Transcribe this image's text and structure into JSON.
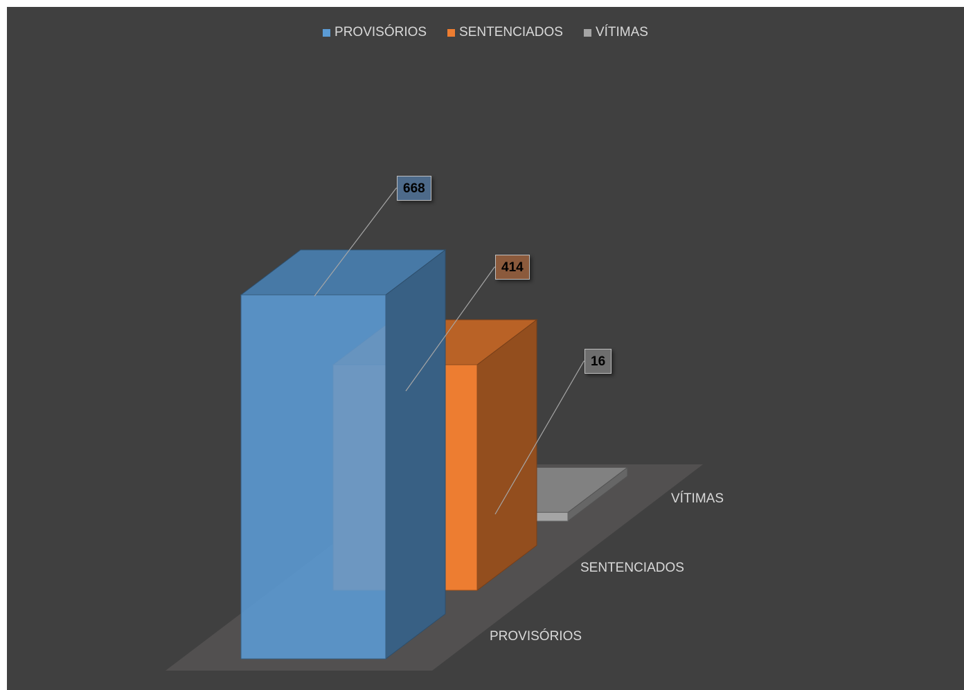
{
  "chart_data": {
    "type": "bar",
    "categories": [
      "PROVISÓRIOS",
      "SENTENCIADOS",
      "VÍTIMAS"
    ],
    "series": [
      {
        "name": "PROVISÓRIOS",
        "values": [
          668,
          null,
          null
        ],
        "color": "#5b9bd5"
      },
      {
        "name": "SENTENCIADOS",
        "values": [
          null,
          414,
          null
        ],
        "color": "#ed7d31"
      },
      {
        "name": "VÍTIMAS",
        "values": [
          null,
          null,
          16
        ],
        "color": "#a5a5a5"
      }
    ],
    "data_labels": [
      "668",
      "414",
      "16"
    ],
    "legend_position": "top",
    "grid": false,
    "style": "3d-column"
  }
}
